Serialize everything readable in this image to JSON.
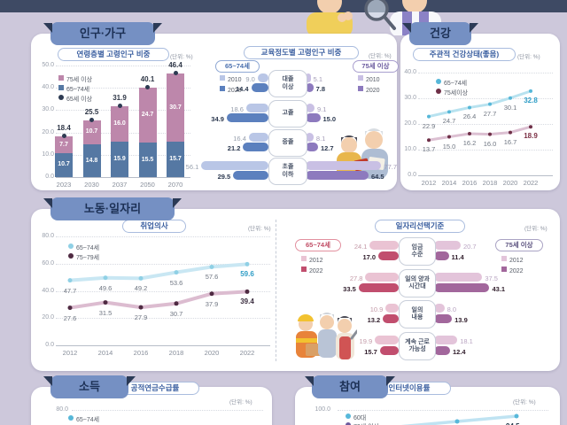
{
  "sections": {
    "population": {
      "tab": "인구·가구"
    },
    "health": {
      "tab": "건강"
    },
    "labor": {
      "tab": "노동·일자리"
    },
    "income": {
      "tab": "소득"
    },
    "participation": {
      "tab": "참여"
    }
  },
  "chart_data": [
    {
      "id": "age_share",
      "type": "bar",
      "stacked": true,
      "title": "연령층별 고령인구 비중",
      "unit": "(단위: %)",
      "categories": [
        "2023",
        "2030",
        "2037",
        "2050",
        "2070"
      ],
      "series": [
        {
          "name": "65~74세",
          "color": "#5578a3",
          "values": [
            10.7,
            14.8,
            15.9,
            15.5,
            15.7
          ]
        },
        {
          "name": "75세 이상",
          "color": "#bd87ab",
          "values": [
            7.7,
            10.7,
            16.0,
            24.7,
            30.7
          ]
        }
      ],
      "totals": {
        "name": "65세 이상",
        "color": "#2d3a52",
        "values": [
          18.4,
          25.5,
          31.9,
          40.1,
          46.4
        ]
      },
      "ylim": [
        0,
        50
      ],
      "yticks": [
        "50.0",
        "40.0",
        "30.0",
        "20.0",
        "10.0",
        "0.0"
      ],
      "legend": [
        {
          "label": "75세 이상",
          "swatch": "square",
          "color": "#bd87ab"
        },
        {
          "label": "65~74세",
          "swatch": "square",
          "color": "#5578a3"
        },
        {
          "label": "65세 이상",
          "swatch": "dot",
          "color": "#2d3a52"
        }
      ]
    },
    {
      "id": "edu_share",
      "type": "butterfly-bar",
      "title": "교육정도별 고령인구 비중",
      "unit": "(단위: %)",
      "categories": [
        "대졸\n이상",
        "고졸",
        "중졸",
        "초졸\n이하"
      ],
      "left": {
        "group": "65~74세",
        "series": [
          {
            "name": "2010",
            "color": "#b9c6e6",
            "values": [
              9.0,
              18.6,
              16.4,
              56.1
            ]
          },
          {
            "name": "2020",
            "color": "#5b80be",
            "values": [
              14.4,
              34.9,
              21.2,
              29.5
            ]
          }
        ]
      },
      "right": {
        "group": "75세 이상",
        "series": [
          {
            "name": "2010",
            "color": "#c9c0e4",
            "values": [
              5.1,
              9.1,
              8.1,
              77.7
            ]
          },
          {
            "name": "2020",
            "color": "#8d7abe",
            "values": [
              7.8,
              15.0,
              12.7,
              64.5
            ]
          }
        ]
      }
    },
    {
      "id": "health_status",
      "type": "line",
      "title": "주관적 건강상태(좋음)",
      "unit": "(단위: %)",
      "x": [
        "2012",
        "2014",
        "2016",
        "2018",
        "2020",
        "2022"
      ],
      "series": [
        {
          "name": "65~74세",
          "line": "#b8e2ef",
          "marker": "#56b7d8",
          "last_color": "#2e9dc6",
          "values": [
            22.9,
            24.7,
            26.4,
            27.7,
            30.1,
            32.8
          ]
        },
        {
          "name": "75세이상",
          "line": "#dcc0d2",
          "marker": "#6e2f47",
          "last_color": "#7c3045",
          "values": [
            13.7,
            15.0,
            16.2,
            16.0,
            16.7,
            18.9
          ]
        }
      ],
      "ylim": [
        0,
        40
      ],
      "yticks": [
        "40.0",
        "30.0",
        "20.0",
        "10.0",
        "0.0"
      ]
    },
    {
      "id": "work_intention",
      "type": "line",
      "title": "취업의사",
      "unit": "(단위: %)",
      "x": [
        "2012",
        "2014",
        "2016",
        "2018",
        "2020",
        "2022"
      ],
      "series": [
        {
          "name": "65~74세",
          "line": "#c9e7f3",
          "marker": "#8fd0e5",
          "last_color": "#2e9dc6",
          "values": [
            47.7,
            49.6,
            49.2,
            53.6,
            57.6,
            59.6
          ]
        },
        {
          "name": "75~79세",
          "line": "#dcbcd0",
          "marker": "#4f2a42",
          "last_color": "#3a2c3e",
          "values": [
            27.6,
            31.5,
            27.9,
            30.7,
            37.9,
            39.4
          ]
        }
      ],
      "ylim": [
        0,
        80
      ],
      "yticks": [
        "80.0",
        "60.0",
        "40.0",
        "20.0",
        "0.0"
      ]
    },
    {
      "id": "job_criteria",
      "type": "butterfly-bar",
      "title": "일자리선택기준",
      "unit": "(단위: %)",
      "categories": [
        "임금\n수준",
        "일의 양과\n시간대",
        "일의\n내용",
        "계속 근로\n가능성"
      ],
      "left": {
        "group": "65~74세",
        "series": [
          {
            "name": "2012",
            "color": "#eac3d3",
            "values": [
              24.1,
              27.8,
              10.9,
              19.9
            ]
          },
          {
            "name": "2022",
            "color": "#c14e6e",
            "values": [
              17.0,
              33.5,
              13.2,
              15.7
            ]
          }
        ]
      },
      "right": {
        "group": "75세 이상",
        "series": [
          {
            "name": "2012",
            "color": "#e3c4da",
            "values": [
              20.7,
              37.5,
              8.0,
              18.1
            ]
          },
          {
            "name": "2022",
            "color": "#a2679c",
            "values": [
              11.4,
              43.1,
              13.9,
              12.4
            ]
          }
        ]
      }
    },
    {
      "id": "pension",
      "type": "line",
      "title": "공적연금수급률",
      "unit": "(단위: %)",
      "yticks": [
        "80.0"
      ],
      "series": [
        {
          "name": "65~74세",
          "marker": "#56b7d8"
        }
      ]
    },
    {
      "id": "internet",
      "type": "line",
      "title": "인터넷이용률",
      "unit": "(단위: %)",
      "yticks": [
        "100.0"
      ],
      "series": [
        {
          "name": "60대",
          "line": "#bfe3f2",
          "marker": "#57b8da",
          "last_color": "#1f3347",
          "last_value": "94.5"
        },
        {
          "name": "70세 이상",
          "marker": "#6d5a9e"
        }
      ]
    }
  ]
}
